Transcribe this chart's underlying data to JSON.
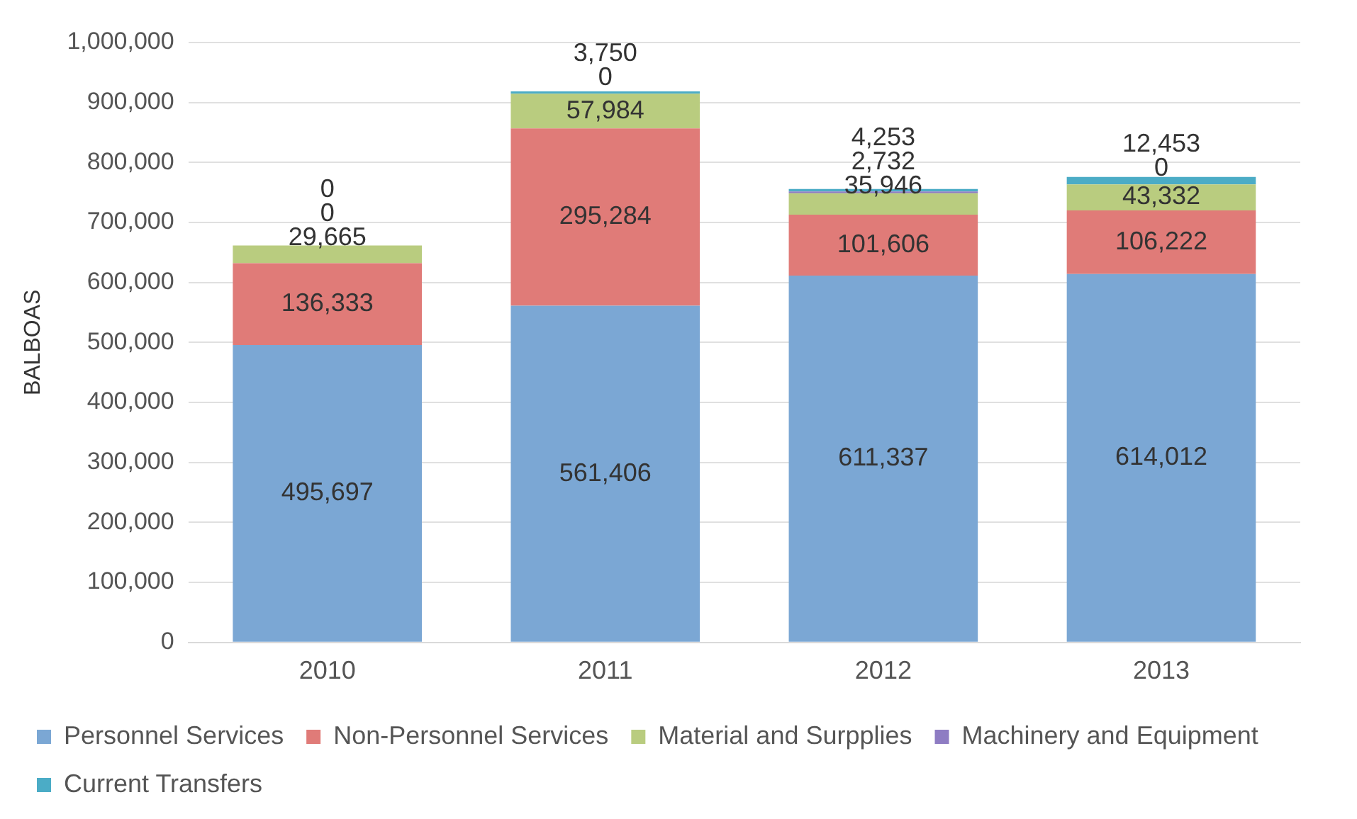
{
  "chart_data": {
    "type": "bar",
    "stacked": true,
    "ylabel": "BALBOAS",
    "categories": [
      "2010",
      "2011",
      "2012",
      "2013"
    ],
    "series": [
      {
        "name": "Personnel Services",
        "color": "#7ba7d4",
        "values": [
          495697,
          561406,
          611337,
          614012
        ],
        "value_labels": [
          "495,697",
          "561,406",
          "611,337",
          "614,012"
        ]
      },
      {
        "name": "Non-Personnel Services",
        "color": "#e07b78",
        "values": [
          136333,
          295284,
          101606,
          106222
        ],
        "value_labels": [
          "136,333",
          "295,284",
          "101,606",
          "106,222"
        ]
      },
      {
        "name": "Material and Surpplies",
        "color": "#b9cc7f",
        "values": [
          29665,
          57984,
          35946,
          43332
        ],
        "value_labels": [
          "29,665",
          "57,984",
          "35,946",
          "43,332"
        ]
      },
      {
        "name": "Machinery and Equipment",
        "color": "#8e7cc3",
        "values": [
          0,
          0,
          2732,
          0
        ],
        "value_labels": [
          "0",
          "0",
          "2,732",
          "0"
        ]
      },
      {
        "name": "Current Transfers",
        "color": "#4bacc6",
        "values": [
          0,
          3750,
          4253,
          12453
        ],
        "value_labels": [
          "0",
          "3,750",
          "4,253",
          "12,453"
        ]
      }
    ],
    "ylim": [
      0,
      1000000
    ],
    "yticks": [
      {
        "value": 0,
        "label": "0"
      },
      {
        "value": 100000,
        "label": "100,000"
      },
      {
        "value": 200000,
        "label": "200,000"
      },
      {
        "value": 300000,
        "label": "300,000"
      },
      {
        "value": 400000,
        "label": "400,000"
      },
      {
        "value": 500000,
        "label": "500,000"
      },
      {
        "value": 600000,
        "label": "600,000"
      },
      {
        "value": 700000,
        "label": "700,000"
      },
      {
        "value": 800000,
        "label": "800,000"
      },
      {
        "value": 900000,
        "label": "900,000"
      },
      {
        "value": 1000000,
        "label": "1,000,000"
      }
    ],
    "grid": "y",
    "legend": "bottom"
  }
}
